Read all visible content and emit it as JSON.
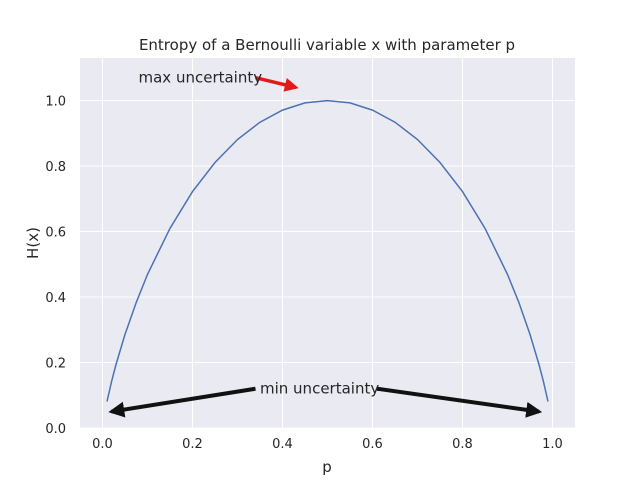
{
  "chart_data": {
    "type": "line",
    "title": "Entropy of a Bernoulli variable x with parameter p",
    "xlabel": "p",
    "ylabel": "H(x)",
    "xlim": [
      -0.05,
      1.05
    ],
    "ylim": [
      0,
      1.13
    ],
    "xticks": [
      0.0,
      0.2,
      0.4,
      0.6,
      0.8,
      1.0
    ],
    "xtick_labels": [
      "0.0",
      "0.2",
      "0.4",
      "0.6",
      "0.8",
      "1.0"
    ],
    "yticks": [
      0.0,
      0.2,
      0.4,
      0.6,
      0.8,
      1.0
    ],
    "ytick_labels": [
      "0.0",
      "0.2",
      "0.4",
      "0.6",
      "0.8",
      "1.0"
    ],
    "grid": true,
    "style": "seaborn-darkgrid",
    "colors": {
      "background": "#eaeaf2",
      "grid": "#ffffff",
      "line": "#4c72b0"
    },
    "series": [
      {
        "x": [
          0.01,
          0.02,
          0.03,
          0.05,
          0.075,
          0.1,
          0.15,
          0.2,
          0.25,
          0.3,
          0.35,
          0.4,
          0.45,
          0.5,
          0.55,
          0.6,
          0.65,
          0.7,
          0.75,
          0.8,
          0.85,
          0.9,
          0.925,
          0.95,
          0.97,
          0.98,
          0.99
        ],
        "y": [
          0.081,
          0.141,
          0.194,
          0.286,
          0.384,
          0.469,
          0.61,
          0.722,
          0.811,
          0.881,
          0.934,
          0.971,
          0.993,
          1.0,
          0.993,
          0.971,
          0.934,
          0.881,
          0.811,
          0.722,
          0.61,
          0.469,
          0.384,
          0.286,
          0.194,
          0.141,
          0.081
        ]
      }
    ],
    "annotations": [
      {
        "text": "max uncertainty",
        "text_at": [
          0.08,
          1.07
        ],
        "arrow_from": [
          0.34,
          1.07
        ],
        "arrow_to": [
          0.43,
          1.04
        ],
        "color": "#e31a1c"
      },
      {
        "text": "min uncertainty",
        "text_at": [
          0.35,
          0.12
        ],
        "arrows": [
          {
            "from": [
              0.34,
              0.12
            ],
            "to": [
              0.02,
              0.05
            ]
          },
          {
            "from": [
              0.61,
              0.12
            ],
            "to": [
              0.97,
              0.05
            ]
          }
        ],
        "color": "#111111"
      }
    ]
  }
}
